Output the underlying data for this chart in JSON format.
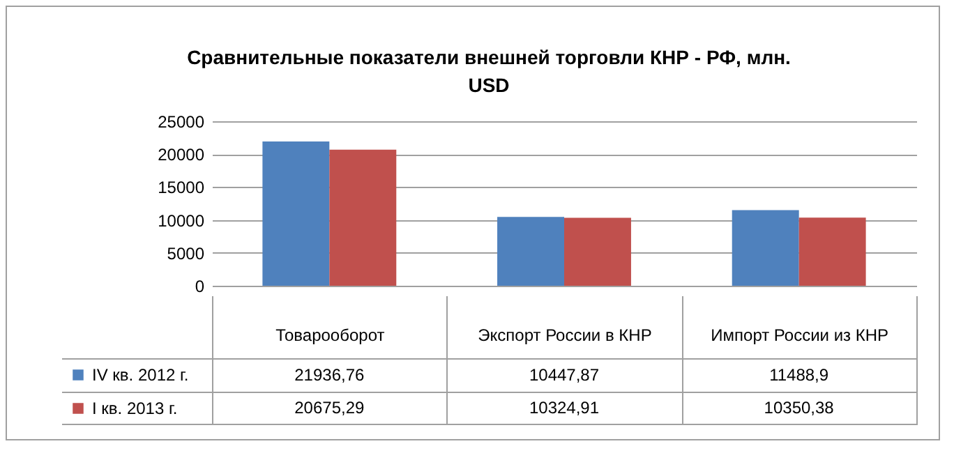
{
  "chart_data": {
    "type": "bar",
    "title": "Сравнительные  показатели внешней торговли КНР - РФ, млн. USD",
    "categories": [
      "Товарооборот",
      "Экспорт России в КНР",
      "Импорт России из КНР"
    ],
    "series": [
      {
        "name": "IV кв. 2012 г.",
        "color": "#4f81bd",
        "values": [
          21936.76,
          10447.87,
          11488.9
        ],
        "value_labels": [
          "21936,76",
          "10447,87",
          "11488,9"
        ]
      },
      {
        "name": "I кв. 2013 г.",
        "color": "#c0504d",
        "values": [
          20675.29,
          10324.91,
          10350.38
        ],
        "value_labels": [
          "20675,29",
          "10324,91",
          "10350,38"
        ]
      }
    ],
    "ylim": [
      0,
      25000
    ],
    "yticks": [
      0,
      5000,
      10000,
      15000,
      20000,
      25000
    ],
    "grid": "y",
    "legend": "bottom"
  }
}
